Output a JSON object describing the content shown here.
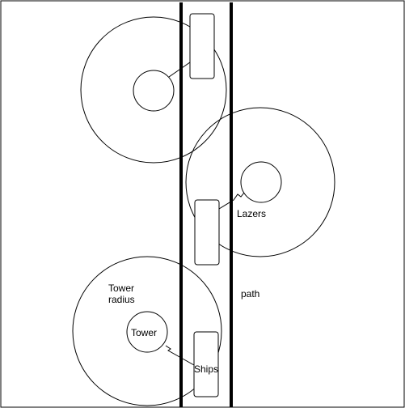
{
  "labels": {
    "lazers": "Lazers",
    "path": "path",
    "tower_radius_line1": "Tower",
    "tower_radius_line2": "radius",
    "tower": "Tower",
    "ships": "Ships"
  },
  "colors": {
    "stroke": "#000000",
    "background": "#ffffff"
  }
}
